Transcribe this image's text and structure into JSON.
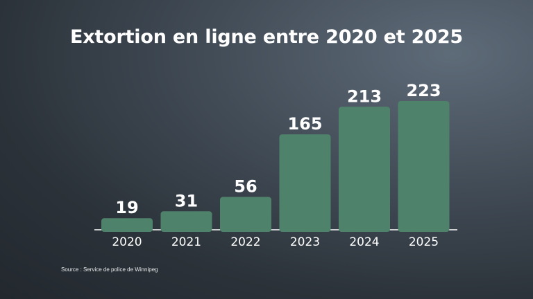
{
  "title": "Extortion en ligne entre 2020 et 2025",
  "source": "Source : Service de police de Winnipeg",
  "colors": {
    "bar": "#4f826a",
    "axis": "#ffffff",
    "text": "#ffffff"
  },
  "chart_data": {
    "type": "bar",
    "title": "Extortion en ligne entre 2020 et 2025",
    "categories": [
      "2020",
      "2021",
      "2022",
      "2023",
      "2024",
      "2025"
    ],
    "values": [
      19,
      31,
      56,
      165,
      213,
      223
    ],
    "data_labels": [
      "19",
      "31",
      "56",
      "165",
      "213",
      "223"
    ],
    "xlabel": "",
    "ylabel": "",
    "ylim": [
      0,
      223
    ],
    "grid": false,
    "legend": "none"
  }
}
